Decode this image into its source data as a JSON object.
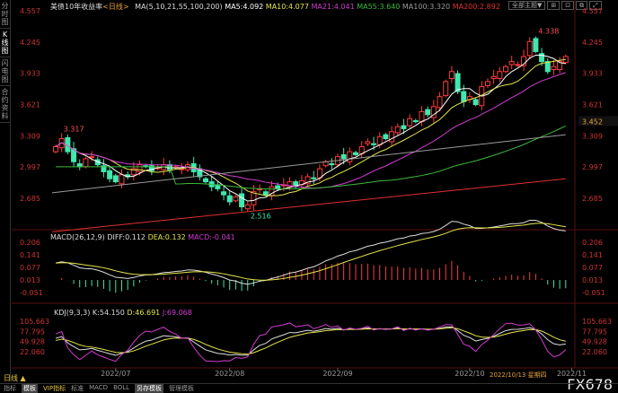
{
  "sidebar": [
    "分时图",
    "K线图",
    "闪电图",
    "合约资料"
  ],
  "title": {
    "name": "美债10年收益率",
    "period": "<日线>",
    "ma_label": "MA(5,10,21,55,100,200)",
    "ma5": "MA5:4.092",
    "ma10": "MA10:4.077",
    "ma21": "MA21:4.041",
    "ma55": "MA55:3.640",
    "ma100": "MA100:3.320",
    "ma200": "MA200:2.892"
  },
  "toolbar": {
    "theme": "全部主题▼",
    "btns": [
      "⊞",
      "⊡",
      "⧉",
      "⤢"
    ]
  },
  "colors": {
    "up": "#ff3b3b",
    "down": "#3ee8b0",
    "ma5": "#ffffff",
    "ma10": "#e6e64c",
    "ma21": "#d23cd2",
    "ma55": "#3cb93c",
    "ma100": "#9a9a9a",
    "ma200": "#e03030"
  },
  "macd": {
    "label": "MACD(26,12,9)",
    "diff": "DIFF:0.112",
    "dea": "DEA:0.132",
    "macd": "MACD:-0.041",
    "ticks": [
      "0.206",
      "0.141",
      "0.077",
      "0.013",
      "-0.051"
    ]
  },
  "kdj": {
    "label": "KDJ(9,3,3)",
    "k": "K:54.150",
    "d": "D:46.691",
    "j": "J:69.068",
    "ticks": [
      "105.663",
      "77.795",
      "49.928",
      "22.060"
    ]
  },
  "bottom_bar": {
    "period": "日线 ▲",
    "date": "2022/10/13 星期四",
    "items": [
      "指标",
      "模板",
      "VIP指标",
      "标准",
      "MACD",
      "BOLL",
      "另存模板",
      "管理模板"
    ]
  },
  "logo": "FX678",
  "chart_data": {
    "type": "candlestick",
    "ylim": [
      2.45,
      4.6
    ],
    "yticks": [
      "4.557",
      "4.245",
      "3.933",
      "3.621",
      "3.309",
      "2.997",
      "2.685"
    ],
    "current": "3.452",
    "annotations": {
      "high": "4.338",
      "low": "2.516",
      "start_high": "3.317"
    },
    "xticks": [
      {
        "label": "2022/07",
        "index": 10
      },
      {
        "label": "2022/08",
        "index": 29
      },
      {
        "label": "2022/09",
        "index": 47
      },
      {
        "label": "2022/10",
        "index": 69
      },
      {
        "label": "2022/11",
        "index": 86
      }
    ],
    "closes": [
      3.2,
      3.28,
      3.15,
      3.05,
      3.0,
      3.08,
      3.1,
      3.02,
      2.95,
      2.88,
      2.85,
      2.92,
      2.9,
      2.98,
      3.02,
      3.0,
      2.96,
      2.99,
      3.02,
      2.97,
      3.0,
      2.98,
      3.02,
      2.95,
      2.9,
      2.85,
      2.8,
      2.78,
      2.72,
      2.65,
      2.7,
      2.6,
      2.62,
      2.75,
      2.78,
      2.72,
      2.8,
      2.78,
      2.82,
      2.85,
      2.8,
      2.86,
      2.9,
      2.88,
      2.98,
      3.05,
      3.02,
      3.1,
      3.08,
      3.15,
      3.12,
      3.2,
      3.25,
      3.22,
      3.3,
      3.28,
      3.35,
      3.4,
      3.38,
      3.48,
      3.45,
      3.55,
      3.52,
      3.6,
      3.7,
      3.85,
      3.95,
      3.75,
      3.65,
      3.7,
      3.62,
      3.8,
      3.85,
      3.9,
      3.95,
      4.0,
      4.05,
      4.02,
      4.1,
      4.25,
      4.15,
      4.05,
      3.95,
      4.0,
      4.05,
      4.1
    ],
    "ma100": [
      2.74,
      3.32
    ],
    "ma200": [
      2.35,
      2.88
    ]
  }
}
